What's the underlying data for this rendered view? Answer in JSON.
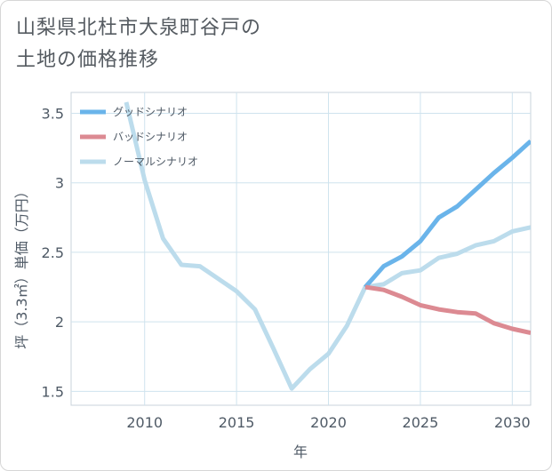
{
  "title": {
    "line1": "山梨県北杜市大泉町谷戸の",
    "line2": "土地の価格推移"
  },
  "chart_data": {
    "type": "line",
    "xlabel": "年",
    "ylabel": "坪（3.3㎡）単価（万円）",
    "xlim": [
      2006,
      2031
    ],
    "ylim": [
      1.4,
      3.65
    ],
    "xticks": [
      2010,
      2015,
      2020,
      2025,
      2030
    ],
    "xtick_labels": [
      "2010",
      "2015",
      "2020",
      "2025",
      "2030"
    ],
    "yticks": [
      1.5,
      2,
      2.5,
      3,
      3.5
    ],
    "ytick_labels": [
      "1.5",
      "2",
      "2.5",
      "3",
      "3.5"
    ],
    "grid": true,
    "legend_position": "top-left",
    "series": [
      {
        "name": "グッドシナリオ",
        "color": "#6ab4ea",
        "x": [
          2022,
          2023,
          2024,
          2025,
          2026,
          2027,
          2028,
          2029,
          2030,
          2031
        ],
        "y": [
          2.25,
          2.4,
          2.47,
          2.58,
          2.75,
          2.83,
          2.95,
          3.07,
          3.18,
          3.3
        ]
      },
      {
        "name": "バッドシナリオ",
        "color": "#dc8a92",
        "x": [
          2022,
          2023,
          2024,
          2025,
          2026,
          2027,
          2028,
          2029,
          2030,
          2031
        ],
        "y": [
          2.25,
          2.23,
          2.18,
          2.12,
          2.09,
          2.07,
          2.06,
          1.99,
          1.95,
          1.92
        ]
      },
      {
        "name": "ノーマルシナリオ",
        "color": "#bcdcec",
        "x": [
          2009,
          2010,
          2011,
          2012,
          2013,
          2014,
          2015,
          2016,
          2017,
          2018,
          2019,
          2020,
          2021,
          2022,
          2023,
          2024,
          2025,
          2026,
          2027,
          2028,
          2029,
          2030,
          2031
        ],
        "y": [
          3.58,
          3.02,
          2.6,
          2.41,
          2.4,
          2.31,
          2.22,
          2.09,
          1.81,
          1.52,
          1.66,
          1.77,
          1.97,
          2.25,
          2.27,
          2.35,
          2.37,
          2.46,
          2.49,
          2.55,
          2.58,
          2.65,
          2.68
        ]
      }
    ]
  }
}
